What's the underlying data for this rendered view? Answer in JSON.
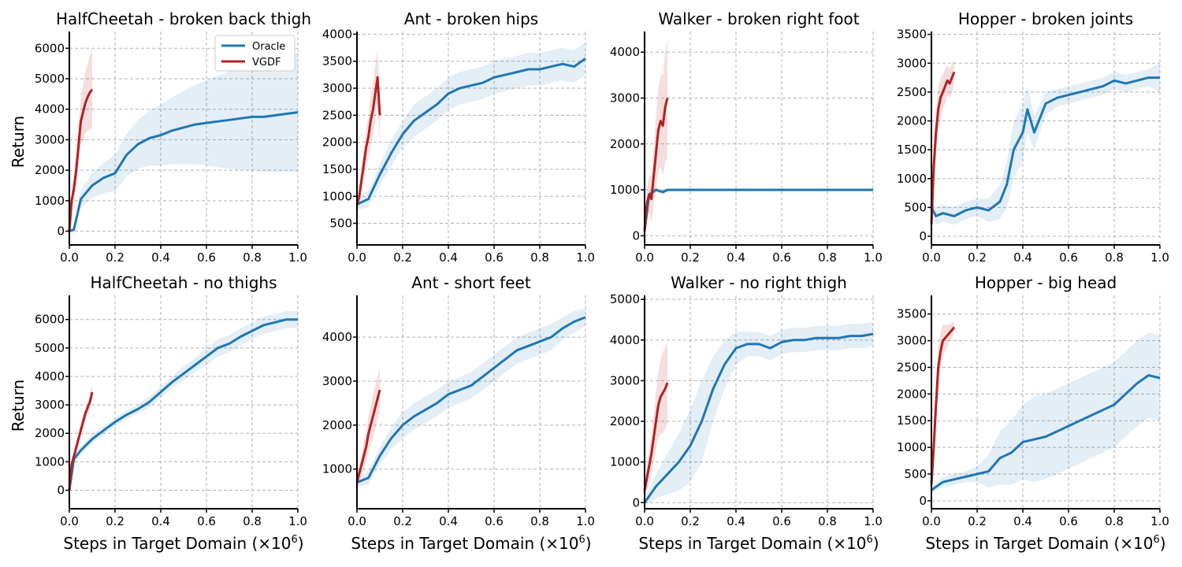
{
  "figure": {
    "ylabel": "Return",
    "xlabel": "Steps in Target Domain (×10",
    "xlabel_exp": "6",
    "xlabel_close": ")",
    "colors": {
      "oracle": "#1f77b4",
      "vgdf": "#b22222",
      "grid": "#b0b0b0"
    },
    "legend": {
      "placement": "top-right of first panel",
      "entries": [
        "Oracle",
        "VGDF"
      ]
    }
  },
  "chart_data": [
    {
      "type": "line",
      "title": "HalfCheetah - broken back thigh",
      "xlim": [
        0,
        1.0
      ],
      "ylim": [
        -450,
        6550
      ],
      "xticks": [
        "0.0",
        "0.2",
        "0.4",
        "0.6",
        "0.8",
        "1.0"
      ],
      "yticks": [
        0,
        1000,
        2000,
        3000,
        4000,
        5000,
        6000
      ],
      "series": [
        {
          "name": "Oracle",
          "x": [
            0.0,
            0.02,
            0.05,
            0.1,
            0.15,
            0.2,
            0.25,
            0.3,
            0.35,
            0.4,
            0.45,
            0.5,
            0.55,
            0.6,
            0.65,
            0.7,
            0.75,
            0.8,
            0.85,
            0.9,
            0.95,
            1.0
          ],
          "y": [
            0,
            50,
            1050,
            1500,
            1750,
            1900,
            2500,
            2850,
            3050,
            3150,
            3300,
            3400,
            3500,
            3550,
            3600,
            3650,
            3700,
            3750,
            3750,
            3800,
            3850,
            3900
          ],
          "band_width": [
            0,
            100,
            300,
            400,
            500,
            600,
            700,
            800,
            900,
            1000,
            1100,
            1200,
            1300,
            1400,
            1500,
            1600,
            1700,
            1750,
            1800,
            1850,
            1900,
            1950
          ]
        },
        {
          "name": "VGDF",
          "x": [
            0.0,
            0.01,
            0.02,
            0.03,
            0.04,
            0.05,
            0.06,
            0.07,
            0.08,
            0.09,
            0.1
          ],
          "y": [
            0,
            1000,
            1400,
            2000,
            2800,
            3600,
            3900,
            4200,
            4400,
            4550,
            4650
          ],
          "band_width": [
            100,
            300,
            400,
            500,
            600,
            800,
            900,
            1000,
            1100,
            1200,
            1300
          ]
        }
      ]
    },
    {
      "type": "line",
      "title": "Ant - broken hips",
      "xlim": [
        0,
        1.0
      ],
      "ylim": [
        100,
        4050
      ],
      "xticks": [
        "0.0",
        "0.2",
        "0.4",
        "0.6",
        "0.8",
        "1.0"
      ],
      "yticks": [
        500,
        1000,
        1500,
        2000,
        2500,
        3000,
        3500,
        4000
      ],
      "series": [
        {
          "name": "Oracle",
          "x": [
            0.0,
            0.05,
            0.1,
            0.15,
            0.2,
            0.25,
            0.3,
            0.35,
            0.4,
            0.45,
            0.5,
            0.55,
            0.6,
            0.65,
            0.7,
            0.75,
            0.8,
            0.85,
            0.9,
            0.95,
            1.0
          ],
          "y": [
            850,
            950,
            1400,
            1800,
            2150,
            2400,
            2550,
            2700,
            2900,
            3000,
            3050,
            3100,
            3200,
            3250,
            3300,
            3350,
            3350,
            3400,
            3450,
            3400,
            3550
          ],
          "band_width": [
            100,
            150,
            200,
            250,
            250,
            300,
            300,
            300,
            300,
            300,
            300,
            300,
            300,
            300,
            300,
            300,
            300,
            300,
            300,
            300,
            300
          ]
        },
        {
          "name": "VGDF",
          "x": [
            0.0,
            0.01,
            0.02,
            0.03,
            0.04,
            0.05,
            0.06,
            0.07,
            0.08,
            0.09,
            0.1
          ],
          "y": [
            850,
            1000,
            1300,
            1600,
            1900,
            2100,
            2400,
            2600,
            2900,
            3200,
            2500
          ],
          "band_width": [
            100,
            200,
            250,
            300,
            350,
            400,
            450,
            500,
            500,
            500,
            500
          ]
        }
      ]
    },
    {
      "type": "line",
      "title": "Walker - broken right foot",
      "xlim": [
        0,
        1.0
      ],
      "ylim": [
        -200,
        4450
      ],
      "xticks": [
        "0.0",
        "0.2",
        "0.4",
        "0.6",
        "0.8",
        "1.0"
      ],
      "yticks": [
        0,
        1000,
        2000,
        3000,
        4000
      ],
      "series": [
        {
          "name": "Oracle",
          "x": [
            0.0,
            0.02,
            0.05,
            0.08,
            0.1,
            0.12,
            1.0
          ],
          "y": [
            100,
            900,
            1000,
            950,
            1000,
            1000,
            1000
          ],
          "band_width": [
            50,
            100,
            50,
            50,
            30,
            20,
            10
          ]
        },
        {
          "name": "VGDF",
          "x": [
            0.0,
            0.01,
            0.02,
            0.03,
            0.04,
            0.05,
            0.06,
            0.07,
            0.08,
            0.09,
            0.1
          ],
          "y": [
            100,
            700,
            900,
            800,
            1300,
            1800,
            2300,
            2500,
            2400,
            2800,
            3000
          ],
          "band_width": [
            100,
            300,
            400,
            500,
            600,
            800,
            900,
            1000,
            1100,
            1200,
            1300
          ]
        }
      ]
    },
    {
      "type": "line",
      "title": "Hopper - broken joints",
      "xlim": [
        0,
        1.0
      ],
      "ylim": [
        -150,
        3550
      ],
      "xticks": [
        "0.0",
        "0.2",
        "0.4",
        "0.6",
        "0.8",
        "1.0"
      ],
      "yticks": [
        0,
        500,
        1000,
        1500,
        2000,
        2500,
        3000,
        3500
      ],
      "series": [
        {
          "name": "Oracle",
          "x": [
            0.0,
            0.02,
            0.05,
            0.1,
            0.15,
            0.2,
            0.25,
            0.3,
            0.33,
            0.36,
            0.4,
            0.42,
            0.45,
            0.5,
            0.55,
            0.6,
            0.65,
            0.7,
            0.75,
            0.8,
            0.85,
            0.9,
            0.95,
            1.0
          ],
          "y": [
            500,
            350,
            400,
            350,
            450,
            500,
            450,
            600,
            900,
            1500,
            1800,
            2200,
            1800,
            2300,
            2400,
            2450,
            2500,
            2550,
            2600,
            2700,
            2650,
            2700,
            2750,
            2750
          ],
          "band_width": [
            150,
            150,
            150,
            150,
            150,
            150,
            200,
            300,
            400,
            500,
            500,
            400,
            300,
            200,
            150,
            150,
            150,
            150,
            150,
            150,
            150,
            150,
            150,
            250
          ]
        },
        {
          "name": "VGDF",
          "x": [
            0.0,
            0.01,
            0.02,
            0.03,
            0.04,
            0.05,
            0.06,
            0.07,
            0.08,
            0.09,
            0.1
          ],
          "y": [
            200,
            1200,
            1800,
            2200,
            2400,
            2500,
            2600,
            2700,
            2650,
            2750,
            2850
          ],
          "band_width": [
            100,
            400,
            400,
            400,
            350,
            300,
            300,
            250,
            250,
            250,
            200
          ]
        }
      ]
    },
    {
      "type": "line",
      "title": "HalfCheetah - no thighs",
      "xlim": [
        0,
        1.0
      ],
      "ylim": [
        -650,
        6850
      ],
      "xticks": [
        "0.0",
        "0.2",
        "0.4",
        "0.6",
        "0.8",
        "1.0"
      ],
      "yticks": [
        0,
        1000,
        2000,
        3000,
        4000,
        5000,
        6000
      ],
      "series": [
        {
          "name": "Oracle",
          "x": [
            0.0,
            0.02,
            0.05,
            0.1,
            0.15,
            0.2,
            0.25,
            0.3,
            0.35,
            0.4,
            0.45,
            0.5,
            0.55,
            0.6,
            0.65,
            0.7,
            0.75,
            0.8,
            0.85,
            0.9,
            0.95,
            1.0
          ],
          "y": [
            0,
            1100,
            1400,
            1800,
            2100,
            2400,
            2650,
            2850,
            3100,
            3450,
            3800,
            4100,
            4400,
            4700,
            5000,
            5150,
            5400,
            5600,
            5800,
            5900,
            6000,
            6000
          ],
          "band_width": [
            100,
            150,
            150,
            150,
            150,
            150,
            150,
            150,
            200,
            200,
            200,
            250,
            250,
            300,
            300,
            300,
            300,
            300,
            300,
            300,
            300,
            300
          ]
        },
        {
          "name": "VGDF",
          "x": [
            0.0,
            0.01,
            0.02,
            0.03,
            0.04,
            0.05,
            0.06,
            0.07,
            0.08,
            0.09,
            0.1
          ],
          "y": [
            0,
            900,
            1200,
            1500,
            1800,
            2100,
            2400,
            2700,
            2900,
            3100,
            3450
          ],
          "band_width": [
            100,
            150,
            150,
            200,
            200,
            200,
            200,
            250,
            250,
            250,
            250
          ]
        }
      ]
    },
    {
      "type": "line",
      "title": "Ant - short feet",
      "xlim": [
        0,
        1.0
      ],
      "ylim": [
        100,
        4950
      ],
      "xticks": [
        "0.0",
        "0.2",
        "0.4",
        "0.6",
        "0.8",
        "1.0"
      ],
      "yticks": [
        1000,
        2000,
        3000,
        4000
      ],
      "series": [
        {
          "name": "Oracle",
          "x": [
            0.0,
            0.05,
            0.1,
            0.15,
            0.2,
            0.25,
            0.3,
            0.35,
            0.4,
            0.45,
            0.5,
            0.55,
            0.6,
            0.65,
            0.7,
            0.75,
            0.8,
            0.85,
            0.9,
            0.95,
            1.0
          ],
          "y": [
            700,
            800,
            1300,
            1700,
            2000,
            2200,
            2350,
            2500,
            2700,
            2800,
            2900,
            3100,
            3300,
            3500,
            3700,
            3800,
            3900,
            4000,
            4200,
            4350,
            4450
          ],
          "band_width": [
            100,
            150,
            200,
            250,
            300,
            300,
            300,
            300,
            300,
            300,
            300,
            300,
            300,
            300,
            300,
            300,
            300,
            300,
            250,
            250,
            200
          ]
        },
        {
          "name": "VGDF",
          "x": [
            0.0,
            0.01,
            0.02,
            0.03,
            0.04,
            0.05,
            0.06,
            0.07,
            0.08,
            0.09,
            0.1
          ],
          "y": [
            700,
            900,
            1100,
            1300,
            1500,
            1800,
            2000,
            2200,
            2400,
            2600,
            2800
          ],
          "band_width": [
            100,
            200,
            250,
            300,
            350,
            400,
            450,
            500,
            500,
            500,
            500
          ]
        }
      ]
    },
    {
      "type": "line",
      "title": "Walker - no right thigh",
      "xlim": [
        0,
        1.0
      ],
      "ylim": [
        -150,
        5100
      ],
      "xticks": [
        "0.0",
        "0.2",
        "0.4",
        "0.6",
        "0.8",
        "1.0"
      ],
      "yticks": [
        0,
        1000,
        2000,
        3000,
        4000,
        5000
      ],
      "series": [
        {
          "name": "Oracle",
          "x": [
            0.0,
            0.05,
            0.1,
            0.15,
            0.2,
            0.25,
            0.3,
            0.35,
            0.4,
            0.45,
            0.5,
            0.55,
            0.6,
            0.65,
            0.7,
            0.75,
            0.8,
            0.85,
            0.9,
            0.95,
            1.0
          ],
          "y": [
            0,
            400,
            700,
            1000,
            1400,
            2000,
            2800,
            3400,
            3800,
            3900,
            3900,
            3800,
            3950,
            4000,
            4000,
            4050,
            4050,
            4050,
            4100,
            4100,
            4150
          ],
          "band_width": [
            100,
            300,
            500,
            700,
            900,
            1000,
            800,
            600,
            400,
            300,
            300,
            300,
            300,
            300,
            300,
            300,
            300,
            300,
            300,
            300,
            300
          ]
        },
        {
          "name": "VGDF",
          "x": [
            0.0,
            0.01,
            0.02,
            0.03,
            0.04,
            0.05,
            0.06,
            0.07,
            0.08,
            0.09,
            0.1
          ],
          "y": [
            300,
            600,
            900,
            1200,
            1600,
            2000,
            2400,
            2600,
            2700,
            2800,
            2950
          ],
          "band_width": [
            200,
            300,
            400,
            500,
            600,
            700,
            800,
            900,
            1000,
            1000,
            1000
          ]
        }
      ]
    },
    {
      "type": "line",
      "title": "Hopper - big head",
      "xlim": [
        0,
        1.0
      ],
      "ylim": [
        -150,
        3850
      ],
      "xticks": [
        "0.0",
        "0.2",
        "0.4",
        "0.6",
        "0.8",
        "1.0"
      ],
      "yticks": [
        0,
        500,
        1000,
        1500,
        2000,
        2500,
        3000,
        3500
      ],
      "series": [
        {
          "name": "Oracle",
          "x": [
            0.0,
            0.05,
            0.1,
            0.15,
            0.2,
            0.25,
            0.3,
            0.35,
            0.4,
            0.45,
            0.5,
            0.55,
            0.6,
            0.65,
            0.7,
            0.75,
            0.8,
            0.85,
            0.9,
            0.95,
            1.0
          ],
          "y": [
            200,
            350,
            400,
            450,
            500,
            550,
            800,
            900,
            1100,
            1150,
            1200,
            1300,
            1400,
            1500,
            1600,
            1700,
            1800,
            2000,
            2200,
            2350,
            2300
          ],
          "band_width": [
            50,
            100,
            100,
            100,
            150,
            300,
            500,
            600,
            700,
            800,
            800,
            800,
            800,
            800,
            800,
            800,
            800,
            800,
            800,
            800,
            800
          ]
        },
        {
          "name": "VGDF",
          "x": [
            0.0,
            0.01,
            0.02,
            0.03,
            0.04,
            0.05,
            0.06,
            0.07,
            0.08,
            0.09,
            0.1
          ],
          "y": [
            300,
            1000,
            1800,
            2500,
            2800,
            3000,
            3050,
            3100,
            3150,
            3200,
            3250
          ],
          "band_width": [
            100,
            300,
            400,
            400,
            350,
            300,
            250,
            200,
            150,
            150,
            100
          ]
        }
      ]
    }
  ]
}
